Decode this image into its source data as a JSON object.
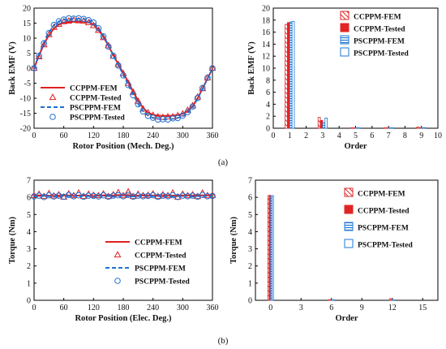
{
  "figure": {
    "subcaption_a": "(a)",
    "subcaption_b": "(b)"
  },
  "colors": {
    "red": "#e02020",
    "blue": "#1f6fd0",
    "bar_red": "#e22424",
    "bar_blue": "#1f77d4"
  },
  "chart_data": [
    {
      "id": "emf_wave",
      "type": "line",
      "xlabel": "Rotor Position (Mech. Deg.)",
      "ylabel": "Back EMF (V)",
      "xlim": [
        0,
        360
      ],
      "ylim": [
        -20,
        20
      ],
      "xticks": [
        0,
        60,
        120,
        180,
        240,
        300,
        360
      ],
      "yticks": [
        -20,
        -15,
        -10,
        -5,
        0,
        5,
        10,
        15,
        20
      ],
      "grid": false,
      "legend_position": "bottom-left",
      "series": [
        {
          "name": "CCPPM-FEM",
          "style": "line",
          "color": "#e02020",
          "x": [
            0,
            10,
            20,
            30,
            40,
            50,
            60,
            70,
            80,
            90,
            100,
            110,
            120,
            130,
            140,
            150,
            160,
            170,
            180,
            190,
            200,
            210,
            220,
            230,
            240,
            250,
            260,
            270,
            280,
            290,
            300,
            310,
            320,
            330,
            340,
            350,
            360
          ],
          "y": [
            0,
            4.2,
            8,
            11,
            13.2,
            14.5,
            15.1,
            15.4,
            15.5,
            15.5,
            15.5,
            15.3,
            14.5,
            12.8,
            10.4,
            7.5,
            4.3,
            1.3,
            -1.6,
            -4.6,
            -7.8,
            -10.8,
            -13.2,
            -14.8,
            -15.5,
            -15.8,
            -15.9,
            -15.9,
            -15.8,
            -15.6,
            -15.2,
            -14.3,
            -12.6,
            -10,
            -6.8,
            -3.4,
            -0.2
          ]
        },
        {
          "name": "CCPPM-Tested",
          "style": "triangle",
          "color": "#e02020",
          "x": [
            0,
            10,
            20,
            30,
            40,
            50,
            60,
            70,
            80,
            90,
            100,
            110,
            120,
            130,
            140,
            150,
            160,
            170,
            180,
            190,
            200,
            210,
            220,
            230,
            240,
            250,
            260,
            270,
            280,
            290,
            300,
            310,
            320,
            330,
            340,
            350,
            360
          ],
          "y": [
            0,
            3.8,
            7.8,
            11.2,
            13.6,
            14.6,
            15.5,
            15.7,
            16,
            15.8,
            15.7,
            15.2,
            14.2,
            12.6,
            10.2,
            7.5,
            4,
            1.2,
            -1.8,
            -5,
            -8,
            -11,
            -13.6,
            -14.8,
            -15.7,
            -16.2,
            -16.4,
            -16.2,
            -16.2,
            -15.8,
            -15.2,
            -14,
            -12.5,
            -9.6,
            -6.8,
            -3.2,
            0
          ]
        },
        {
          "name": "PSCPPM-FEM",
          "style": "dashed",
          "color": "#1f6fd0",
          "x": [
            0,
            10,
            20,
            30,
            40,
            50,
            60,
            70,
            80,
            90,
            100,
            110,
            120,
            130,
            140,
            150,
            160,
            170,
            180,
            190,
            200,
            210,
            220,
            230,
            240,
            250,
            260,
            270,
            280,
            290,
            300,
            310,
            320,
            330,
            340,
            350,
            360
          ],
          "y": [
            0,
            4.5,
            8.6,
            11.9,
            14.3,
            15.6,
            16.2,
            16.4,
            16.5,
            16.5,
            16.4,
            16.1,
            15.3,
            13.5,
            10.8,
            7.6,
            4.2,
            1,
            -2.2,
            -5.5,
            -8.8,
            -11.9,
            -14.3,
            -15.8,
            -16.6,
            -16.9,
            -17,
            -17,
            -16.9,
            -16.6,
            -16,
            -14.9,
            -13,
            -10.2,
            -6.9,
            -3.5,
            -0.2
          ]
        },
        {
          "name": "PSCPPM-Tested",
          "style": "circle",
          "color": "#1f6fd0",
          "x": [
            0,
            10,
            20,
            30,
            40,
            50,
            60,
            70,
            80,
            90,
            100,
            110,
            120,
            130,
            140,
            150,
            160,
            170,
            180,
            190,
            200,
            210,
            220,
            230,
            240,
            250,
            260,
            270,
            280,
            290,
            300,
            310,
            320,
            330,
            340,
            350,
            360
          ],
          "y": [
            0,
            4.1,
            8.3,
            11.7,
            14.4,
            15.6,
            16.2,
            16.6,
            16.5,
            16.6,
            16.4,
            16,
            15.2,
            13.3,
            10.6,
            7.2,
            4.1,
            0.9,
            -2.4,
            -5.6,
            -9,
            -12,
            -14.4,
            -15.9,
            -16.5,
            -17.1,
            -17,
            -17.1,
            -16.7,
            -16.6,
            -15.8,
            -14.6,
            -12.8,
            -9.9,
            -6.6,
            -3.2,
            0
          ]
        }
      ]
    },
    {
      "id": "emf_harm",
      "type": "bar",
      "xlabel": "Order",
      "ylabel": "Back EMF (V)",
      "xlim": [
        0,
        10
      ],
      "ylim": [
        0,
        20
      ],
      "xticks": [
        0,
        1,
        2,
        3,
        4,
        5,
        6,
        7,
        8,
        9,
        10
      ],
      "yticks": [
        0,
        2,
        4,
        6,
        8,
        10,
        12,
        14,
        16,
        18,
        20
      ],
      "grid": false,
      "legend_position": "top-right",
      "categories": [
        1,
        3,
        5,
        7,
        9
      ],
      "series": [
        {
          "name": "CCPPM-FEM",
          "pattern": "hatch-diag",
          "color": "#e22424",
          "values": [
            17.3,
            1.8,
            0.05,
            0.05,
            0.2
          ]
        },
        {
          "name": "CCPPM-Tested",
          "pattern": "solid",
          "color": "#e22424",
          "values": [
            17.6,
            1.3,
            0.05,
            0.05,
            0.1
          ]
        },
        {
          "name": "PSCPPM-FEM",
          "pattern": "hatch-horiz",
          "color": "#1f77d4",
          "values": [
            17.7,
            0.9,
            0.05,
            0.05,
            0.05
          ]
        },
        {
          "name": "PSCPPM-Tested",
          "pattern": "outline",
          "color": "#1f77d4",
          "values": [
            17.8,
            1.7,
            0.05,
            0.05,
            0.1
          ]
        }
      ]
    },
    {
      "id": "torque_wave",
      "type": "line",
      "xlabel": "Rotor Position (Elec. Deg.)",
      "ylabel": "Torque (Nm)",
      "xlim": [
        0,
        360
      ],
      "ylim": [
        0,
        7
      ],
      "xticks": [
        0,
        60,
        120,
        180,
        240,
        300,
        360
      ],
      "yticks": [
        0,
        1,
        2,
        3,
        4,
        5,
        6,
        7
      ],
      "grid": false,
      "legend_position": "bottom-right",
      "series": [
        {
          "name": "CCPPM-FEM",
          "style": "line",
          "color": "#e02020",
          "x": [
            0,
            20,
            40,
            60,
            80,
            100,
            120,
            140,
            160,
            180,
            200,
            220,
            240,
            260,
            280,
            300,
            320,
            340,
            360
          ],
          "y": [
            6.1,
            6.12,
            6.08,
            6.13,
            6.09,
            6.12,
            6.08,
            6.11,
            6.1,
            6.12,
            6.09,
            6.11,
            6.1,
            6.12,
            6.08,
            6.11,
            6.1,
            6.12,
            6.1
          ]
        },
        {
          "name": "CCPPM-Tested",
          "style": "triangle",
          "color": "#e02020",
          "x": [
            0,
            10,
            20,
            30,
            40,
            50,
            60,
            70,
            80,
            90,
            100,
            110,
            120,
            130,
            140,
            150,
            160,
            170,
            180,
            190,
            200,
            210,
            220,
            230,
            240,
            250,
            260,
            270,
            280,
            290,
            300,
            310,
            320,
            330,
            340,
            350,
            360
          ],
          "y": [
            6.1,
            6.18,
            6.05,
            6.22,
            6.08,
            6.15,
            6.02,
            6.2,
            6.1,
            6.25,
            6.05,
            6.18,
            6.12,
            6.1,
            6.2,
            6.05,
            6.15,
            6.28,
            6.1,
            6.32,
            6.05,
            6.18,
            6.1,
            6.12,
            6.2,
            6.05,
            6.15,
            6.1,
            6.25,
            6.02,
            6.18,
            6.1,
            6.15,
            6.05,
            6.25,
            6.1,
            6.12
          ]
        },
        {
          "name": "PSCPPM-FEM",
          "style": "dashed",
          "color": "#1f6fd0",
          "x": [
            0,
            20,
            40,
            60,
            80,
            100,
            120,
            140,
            160,
            180,
            200,
            220,
            240,
            260,
            280,
            300,
            320,
            340,
            360
          ],
          "y": [
            6.06,
            6.08,
            6.05,
            6.09,
            6.06,
            6.08,
            6.05,
            6.08,
            6.06,
            6.08,
            6.05,
            6.08,
            6.06,
            6.08,
            6.05,
            6.08,
            6.06,
            6.08,
            6.06
          ]
        },
        {
          "name": "PSCPPM-Tested",
          "style": "circle",
          "color": "#1f6fd0",
          "x": [
            0,
            10,
            20,
            30,
            40,
            50,
            60,
            70,
            80,
            90,
            100,
            110,
            120,
            130,
            140,
            150,
            160,
            170,
            180,
            190,
            200,
            210,
            220,
            230,
            240,
            250,
            260,
            270,
            280,
            290,
            300,
            310,
            320,
            330,
            340,
            350,
            360
          ],
          "y": [
            6.05,
            6.1,
            6.02,
            6.12,
            6.05,
            6.1,
            6.03,
            6.14,
            6.06,
            6.12,
            6.04,
            6.1,
            6.08,
            6.05,
            6.12,
            6.04,
            6.1,
            6.12,
            6.06,
            6.14,
            6.04,
            6.1,
            6.06,
            6.08,
            6.12,
            6.03,
            6.1,
            6.06,
            6.12,
            6.02,
            6.1,
            6.06,
            6.1,
            6.04,
            6.14,
            6.06,
            6.08
          ]
        }
      ]
    },
    {
      "id": "torque_harm",
      "type": "bar",
      "xlabel": "Order",
      "ylabel": "Torque (Nm)",
      "xlim": [
        -1.5,
        16.5
      ],
      "ylim": [
        0,
        7
      ],
      "xticks": [
        0,
        3,
        6,
        9,
        12,
        15
      ],
      "yticks": [
        0,
        1,
        2,
        3,
        4,
        5,
        6,
        7
      ],
      "grid": false,
      "legend_position": "top-right",
      "categories": [
        0,
        6,
        12
      ],
      "series": [
        {
          "name": "CCPPM-FEM",
          "pattern": "hatch-diag",
          "color": "#e22424",
          "values": [
            6.1,
            0.04,
            0.1
          ]
        },
        {
          "name": "CCPPM-Tested",
          "pattern": "solid",
          "color": "#e22424",
          "values": [
            6.12,
            0.03,
            0.02
          ]
        },
        {
          "name": "PSCPPM-FEM",
          "pattern": "hatch-horiz",
          "color": "#1f77d4",
          "values": [
            6.08,
            0.02,
            0.02
          ]
        },
        {
          "name": "PSCPPM-Tested",
          "pattern": "outline",
          "color": "#1f77d4",
          "values": [
            6.1,
            0.03,
            0.02
          ]
        }
      ]
    }
  ]
}
